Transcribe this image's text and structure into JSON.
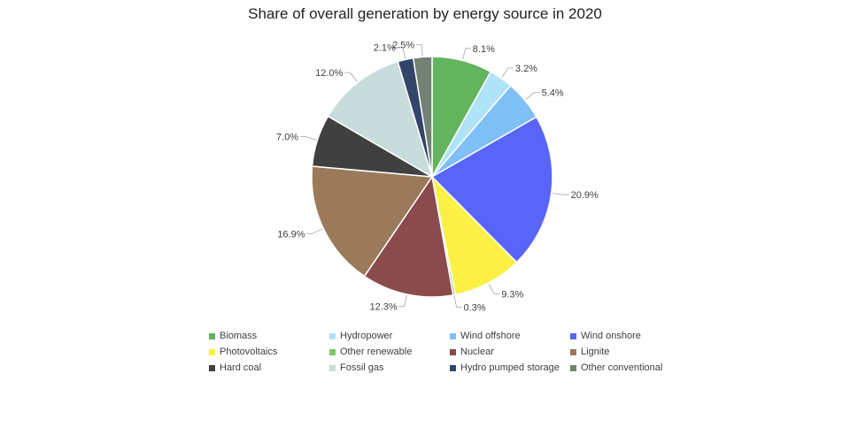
{
  "chart_data": {
    "type": "pie",
    "title": "Share of overall generation by energy source in 2020",
    "slices": [
      {
        "name": "Biomass",
        "value": 8.1,
        "label": "8.1%",
        "color": "#62b45d"
      },
      {
        "name": "Hydropower",
        "value": 3.2,
        "label": "3.2%",
        "color": "#aee3f8"
      },
      {
        "name": "Wind offshore",
        "value": 5.4,
        "label": "5.4%",
        "color": "#7fc0f6"
      },
      {
        "name": "Wind onshore",
        "value": 20.9,
        "label": "20.9%",
        "color": "#5865f8"
      },
      {
        "name": "Photovoltaics",
        "value": 9.3,
        "label": "9.3%",
        "color": "#fbf145"
      },
      {
        "name": "Other renewable",
        "value": 0.3,
        "label": "0.3%",
        "color": "#7bc86c"
      },
      {
        "name": "Nuclear",
        "value": 12.3,
        "label": "12.3%",
        "color": "#8b4a4c"
      },
      {
        "name": "Lignite",
        "value": 16.9,
        "label": "16.9%",
        "color": "#9a7a5a"
      },
      {
        "name": "Hard coal",
        "value": 7.0,
        "label": "7.0%",
        "color": "#404040"
      },
      {
        "name": "Fossil gas",
        "value": 12.0,
        "label": "12.0%",
        "color": "#c8dcdb"
      },
      {
        "name": "Hydro pumped storage",
        "value": 2.1,
        "label": "2.1%",
        "color": "#34456b"
      },
      {
        "name": "Other conventional",
        "value": 2.5,
        "label": "2.5%",
        "color": "#748276"
      }
    ],
    "legend_position": "bottom"
  }
}
